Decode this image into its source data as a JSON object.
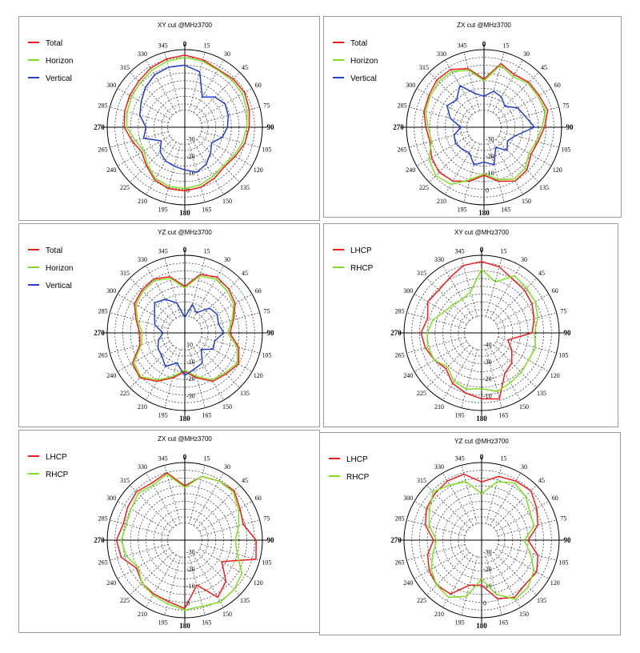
{
  "chart_data": [
    {
      "type": "polar-line",
      "title": "XY cut @MHz3700",
      "angle_labels": [
        "0",
        "15",
        "30",
        "45",
        "60",
        "75",
        "90",
        "105",
        "120",
        "135",
        "150",
        "165",
        "180",
        "195",
        "210",
        "225",
        "240",
        "265",
        "270",
        "285",
        "300",
        "315",
        "330",
        "345"
      ],
      "radial_labels": [
        "-30",
        "-20",
        "-10",
        "0"
      ],
      "series": [
        {
          "name": "Total",
          "color": "#ee1c1c",
          "r": [
            0.93,
            0.9,
            0.86,
            0.88,
            0.89,
            0.86,
            0.83,
            0.8,
            0.75,
            0.72,
            0.76,
            0.8,
            0.82,
            0.82,
            0.78,
            0.7,
            0.64,
            0.7,
            0.78,
            0.8,
            0.82,
            0.84,
            0.88,
            0.91
          ]
        },
        {
          "name": "Horizon",
          "color": "#7ee021",
          "r": [
            0.9,
            0.88,
            0.85,
            0.86,
            0.86,
            0.83,
            0.8,
            0.77,
            0.73,
            0.7,
            0.73,
            0.77,
            0.79,
            0.79,
            0.76,
            0.68,
            0.61,
            0.66,
            0.75,
            0.77,
            0.79,
            0.81,
            0.85,
            0.88
          ]
        },
        {
          "name": "Vertical",
          "color": "#1f3fcc",
          "r": [
            0.8,
            0.74,
            0.45,
            0.55,
            0.6,
            0.58,
            0.55,
            0.5,
            0.4,
            0.47,
            0.55,
            0.6,
            0.55,
            0.52,
            0.5,
            0.45,
            0.35,
            0.55,
            0.5,
            0.6,
            0.65,
            0.72,
            0.78,
            0.8
          ]
        }
      ]
    },
    {
      "type": "polar-line",
      "title": "ZX cut @MHz3700",
      "angle_labels": [
        "0",
        "15",
        "30",
        "45",
        "60",
        "75",
        "90",
        "105",
        "120",
        "135",
        "150",
        "165",
        "180",
        "195",
        "210",
        "225",
        "240",
        "265",
        "270",
        "285",
        "300",
        "315",
        "330",
        "345"
      ],
      "radial_labels": [
        "-30",
        "-20",
        "-10",
        "0"
      ],
      "series": [
        {
          "name": "Total",
          "color": "#ee1c1c",
          "r": [
            0.62,
            0.85,
            0.78,
            0.82,
            0.82,
            0.85,
            0.78,
            0.72,
            0.7,
            0.78,
            0.8,
            0.72,
            0.62,
            0.72,
            0.8,
            0.82,
            0.78,
            0.72,
            0.75,
            0.8,
            0.82,
            0.86,
            0.86,
            0.78
          ]
        },
        {
          "name": "Horizon",
          "color": "#7ee021",
          "r": [
            0.6,
            0.83,
            0.75,
            0.8,
            0.8,
            0.82,
            0.75,
            0.7,
            0.67,
            0.75,
            0.77,
            0.7,
            0.6,
            0.7,
            0.85,
            0.88,
            0.82,
            0.7,
            0.72,
            0.78,
            0.8,
            0.83,
            0.83,
            0.76
          ]
        },
        {
          "name": "Vertical",
          "color": "#1f3fcc",
          "r": [
            0.4,
            0.48,
            0.45,
            0.38,
            0.5,
            0.55,
            0.65,
            0.42,
            0.35,
            0.42,
            0.3,
            0.5,
            0.45,
            0.5,
            0.38,
            0.4,
            0.42,
            0.4,
            0.3,
            0.45,
            0.55,
            0.5,
            0.62,
            0.45
          ]
        }
      ]
    },
    {
      "type": "polar-line",
      "title": "YZ cut @MHz3700",
      "angle_labels": [
        "0",
        "15",
        "30",
        "45",
        "60",
        "75",
        "90",
        "105",
        "120",
        "135",
        "150",
        "165",
        "180",
        "195",
        "210",
        "225",
        "240",
        "265",
        "270",
        "285",
        "300",
        "315",
        "330",
        "345"
      ],
      "radial_labels": [
        "10",
        "-10",
        "-20",
        "-30"
      ],
      "series": [
        {
          "name": "Total",
          "color": "#ee1c1c",
          "r": [
            0.6,
            0.78,
            0.83,
            0.8,
            0.75,
            0.65,
            0.58,
            0.72,
            0.8,
            0.75,
            0.72,
            0.6,
            0.5,
            0.6,
            0.72,
            0.82,
            0.78,
            0.6,
            0.58,
            0.65,
            0.75,
            0.78,
            0.8,
            0.75
          ]
        },
        {
          "name": "Horizon",
          "color": "#7ee021",
          "r": [
            0.58,
            0.76,
            0.8,
            0.77,
            0.73,
            0.63,
            0.55,
            0.7,
            0.78,
            0.73,
            0.7,
            0.58,
            0.48,
            0.58,
            0.7,
            0.8,
            0.76,
            0.58,
            0.55,
            0.63,
            0.73,
            0.76,
            0.78,
            0.73
          ]
        },
        {
          "name": "Vertical",
          "color": "#1f3fcc",
          "r": [
            0.2,
            0.38,
            0.3,
            0.45,
            0.48,
            0.45,
            0.5,
            0.4,
            0.42,
            0.3,
            0.45,
            0.48,
            0.55,
            0.4,
            0.5,
            0.42,
            0.4,
            0.35,
            0.28,
            0.4,
            0.45,
            0.55,
            0.5,
            0.4
          ]
        }
      ]
    },
    {
      "type": "polar-line",
      "title": "XY cut @MHz3700",
      "angle_labels": [
        "0",
        "15",
        "30",
        "45",
        "60",
        "75",
        "90",
        "105",
        "120",
        "135",
        "150",
        "165",
        "180",
        "195",
        "210",
        "225",
        "240",
        "265",
        "270",
        "285",
        "300",
        "315",
        "330",
        "345"
      ],
      "radial_labels": [
        "-40",
        "-30",
        "-20",
        "-10"
      ],
      "series": [
        {
          "name": "LHCP",
          "color": "#ee1c1c",
          "r": [
            0.92,
            0.88,
            0.8,
            0.78,
            0.75,
            0.7,
            0.65,
            0.35,
            0.45,
            0.55,
            0.6,
            0.88,
            0.85,
            0.8,
            0.75,
            0.65,
            0.7,
            0.75,
            0.78,
            0.72,
            0.8,
            0.78,
            0.82,
            0.9
          ]
        },
        {
          "name": "RHCP",
          "color": "#7ee021",
          "r": [
            0.82,
            0.68,
            0.85,
            0.82,
            0.8,
            0.75,
            0.68,
            0.72,
            0.7,
            0.72,
            0.74,
            0.78,
            0.72,
            0.75,
            0.72,
            0.62,
            0.7,
            0.72,
            0.7,
            0.65,
            0.55,
            0.52,
            0.5,
            0.55
          ]
        }
      ]
    },
    {
      "type": "polar-line",
      "title": "ZX cut @MHz3700",
      "angle_labels": [
        "0",
        "15",
        "30",
        "45",
        "60",
        "75",
        "90",
        "105",
        "120",
        "135",
        "150",
        "165",
        "180",
        "195",
        "210",
        "225",
        "240",
        "265",
        "270",
        "285",
        "300",
        "315",
        "330",
        "345"
      ],
      "radial_labels": [
        "-30",
        "-20",
        "-10",
        "0"
      ],
      "series": [
        {
          "name": "LHCP",
          "color": "#ee1c1c",
          "r": [
            0.7,
            0.85,
            0.88,
            0.9,
            0.82,
            0.78,
            0.92,
            0.95,
            0.55,
            0.75,
            0.85,
            0.6,
            0.88,
            0.82,
            0.8,
            0.78,
            0.72,
            0.85,
            0.88,
            0.82,
            0.85,
            0.88,
            0.85,
            0.9
          ]
        },
        {
          "name": "RHCP",
          "color": "#7ee021",
          "r": [
            0.68,
            0.85,
            0.88,
            0.88,
            0.8,
            0.72,
            0.65,
            0.7,
            0.85,
            0.9,
            0.92,
            0.88,
            0.9,
            0.85,
            0.82,
            0.78,
            0.7,
            0.78,
            0.82,
            0.78,
            0.8,
            0.85,
            0.82,
            0.88
          ]
        }
      ]
    },
    {
      "type": "polar-line",
      "title": "YZ cut @MHz3700",
      "angle_labels": [
        "0",
        "15",
        "30",
        "45",
        "60",
        "75",
        "90",
        "105",
        "120",
        "135",
        "150",
        "165",
        "180",
        "195",
        "210",
        "225",
        "240",
        "265",
        "270",
        "285",
        "300",
        "315",
        "330",
        "345"
      ],
      "radial_labels": [
        "-30",
        "-20",
        "-10",
        "0"
      ],
      "series": [
        {
          "name": "LHCP",
          "color": "#ee1c1c",
          "r": [
            0.75,
            0.85,
            0.88,
            0.9,
            0.82,
            0.75,
            0.6,
            0.75,
            0.82,
            0.8,
            0.85,
            0.78,
            0.58,
            0.6,
            0.8,
            0.82,
            0.78,
            0.72,
            0.62,
            0.75,
            0.82,
            0.85,
            0.88,
            0.88
          ]
        },
        {
          "name": "RHCP",
          "color": "#7ee021",
          "r": [
            0.6,
            0.78,
            0.85,
            0.8,
            0.72,
            0.7,
            0.55,
            0.65,
            0.78,
            0.85,
            0.88,
            0.72,
            0.5,
            0.75,
            0.85,
            0.82,
            0.75,
            0.65,
            0.58,
            0.7,
            0.78,
            0.88,
            0.82,
            0.78
          ]
        }
      ]
    }
  ]
}
